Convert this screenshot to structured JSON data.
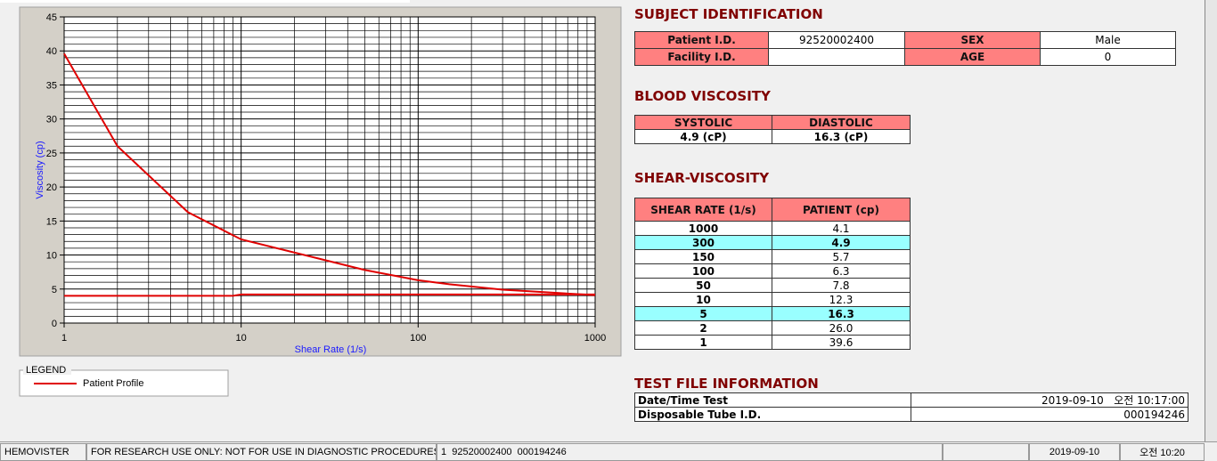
{
  "chart_data": {
    "type": "line",
    "xlabel": "Shear Rate (1/s)",
    "ylabel": "Viscosity (cp)",
    "xscale": "log",
    "xlim": [
      1,
      1000
    ],
    "xticks": [
      1,
      10,
      100,
      1000
    ],
    "ylim": [
      0,
      45
    ],
    "yticks": [
      0,
      5,
      10,
      15,
      20,
      25,
      30,
      35,
      40,
      45
    ],
    "grid": true,
    "x_minor_ticks": [
      2,
      3,
      4,
      5,
      6,
      7,
      8,
      9,
      20,
      30,
      40,
      50,
      60,
      70,
      80,
      90,
      200,
      300,
      400,
      500,
      600,
      700,
      800,
      900
    ],
    "y_minor_ticks": [
      1,
      2,
      3,
      4,
      6,
      7,
      8,
      9,
      11,
      12,
      13,
      14,
      16,
      17,
      18,
      19,
      21,
      22,
      23,
      24,
      26,
      27,
      28,
      29,
      31,
      32,
      33,
      34,
      36,
      37,
      38,
      39,
      41,
      42,
      43,
      44
    ],
    "series": [
      {
        "name": "Patient Profile",
        "color": "#e00000",
        "x": [
          1,
          2,
          5,
          10,
          50,
          100,
          150,
          300,
          1000
        ],
        "values": [
          39.6,
          26.0,
          16.3,
          12.3,
          7.8,
          6.3,
          5.7,
          4.9,
          4.1
        ]
      },
      {
        "color": "#e00000",
        "x": [
          1,
          9,
          10,
          1000
        ],
        "values": [
          4,
          4,
          4.2,
          4.2
        ]
      }
    ],
    "legend_title": "LEGEND"
  },
  "subject": {
    "title": "SUBJECT IDENTIFICATION",
    "patient_id_label": "Patient I.D.",
    "patient_id": "92520002400",
    "sex_label": "SEX",
    "sex": "Male",
    "facility_label": "Facility I.D.",
    "age_label": "AGE",
    "age": "0"
  },
  "blood": {
    "title": "BLOOD VISCOSITY",
    "headers": [
      "SYSTOLIC",
      "DIASTOLIC"
    ],
    "values": [
      "4.9 (cP)",
      "16.3 (cP)"
    ]
  },
  "shear": {
    "title": "SHEAR-VISCOSITY",
    "headers": [
      "SHEAR RATE (1/s)",
      "PATIENT (cp)"
    ],
    "rows": [
      [
        "1000",
        "4.1"
      ],
      [
        "300",
        "4.9"
      ],
      [
        "150",
        "5.7"
      ],
      [
        "100",
        "6.3"
      ],
      [
        "50",
        "7.8"
      ],
      [
        "10",
        "12.3"
      ],
      [
        "5",
        "16.3"
      ],
      [
        "2",
        "26.0"
      ],
      [
        "1",
        "39.6"
      ]
    ],
    "highlight": [
      false,
      true,
      false,
      false,
      false,
      false,
      true,
      false,
      false
    ],
    "highlight_color": "#99ffff"
  },
  "test_file": {
    "title": "TEST FILE INFORMATION",
    "rows": [
      [
        "Date/Time Test",
        "2019-09-10   오전 10:17:00"
      ],
      [
        "Disposable Tube I.D.",
        "000194246"
      ]
    ]
  },
  "status": [
    "HEMOVISTER",
    "FOR RESEARCH USE ONLY: NOT FOR USE IN DIAGNOSTIC PROCEDURES",
    "1  92520002400  000194246",
    "2019-09-10",
    "오전 10:20"
  ]
}
